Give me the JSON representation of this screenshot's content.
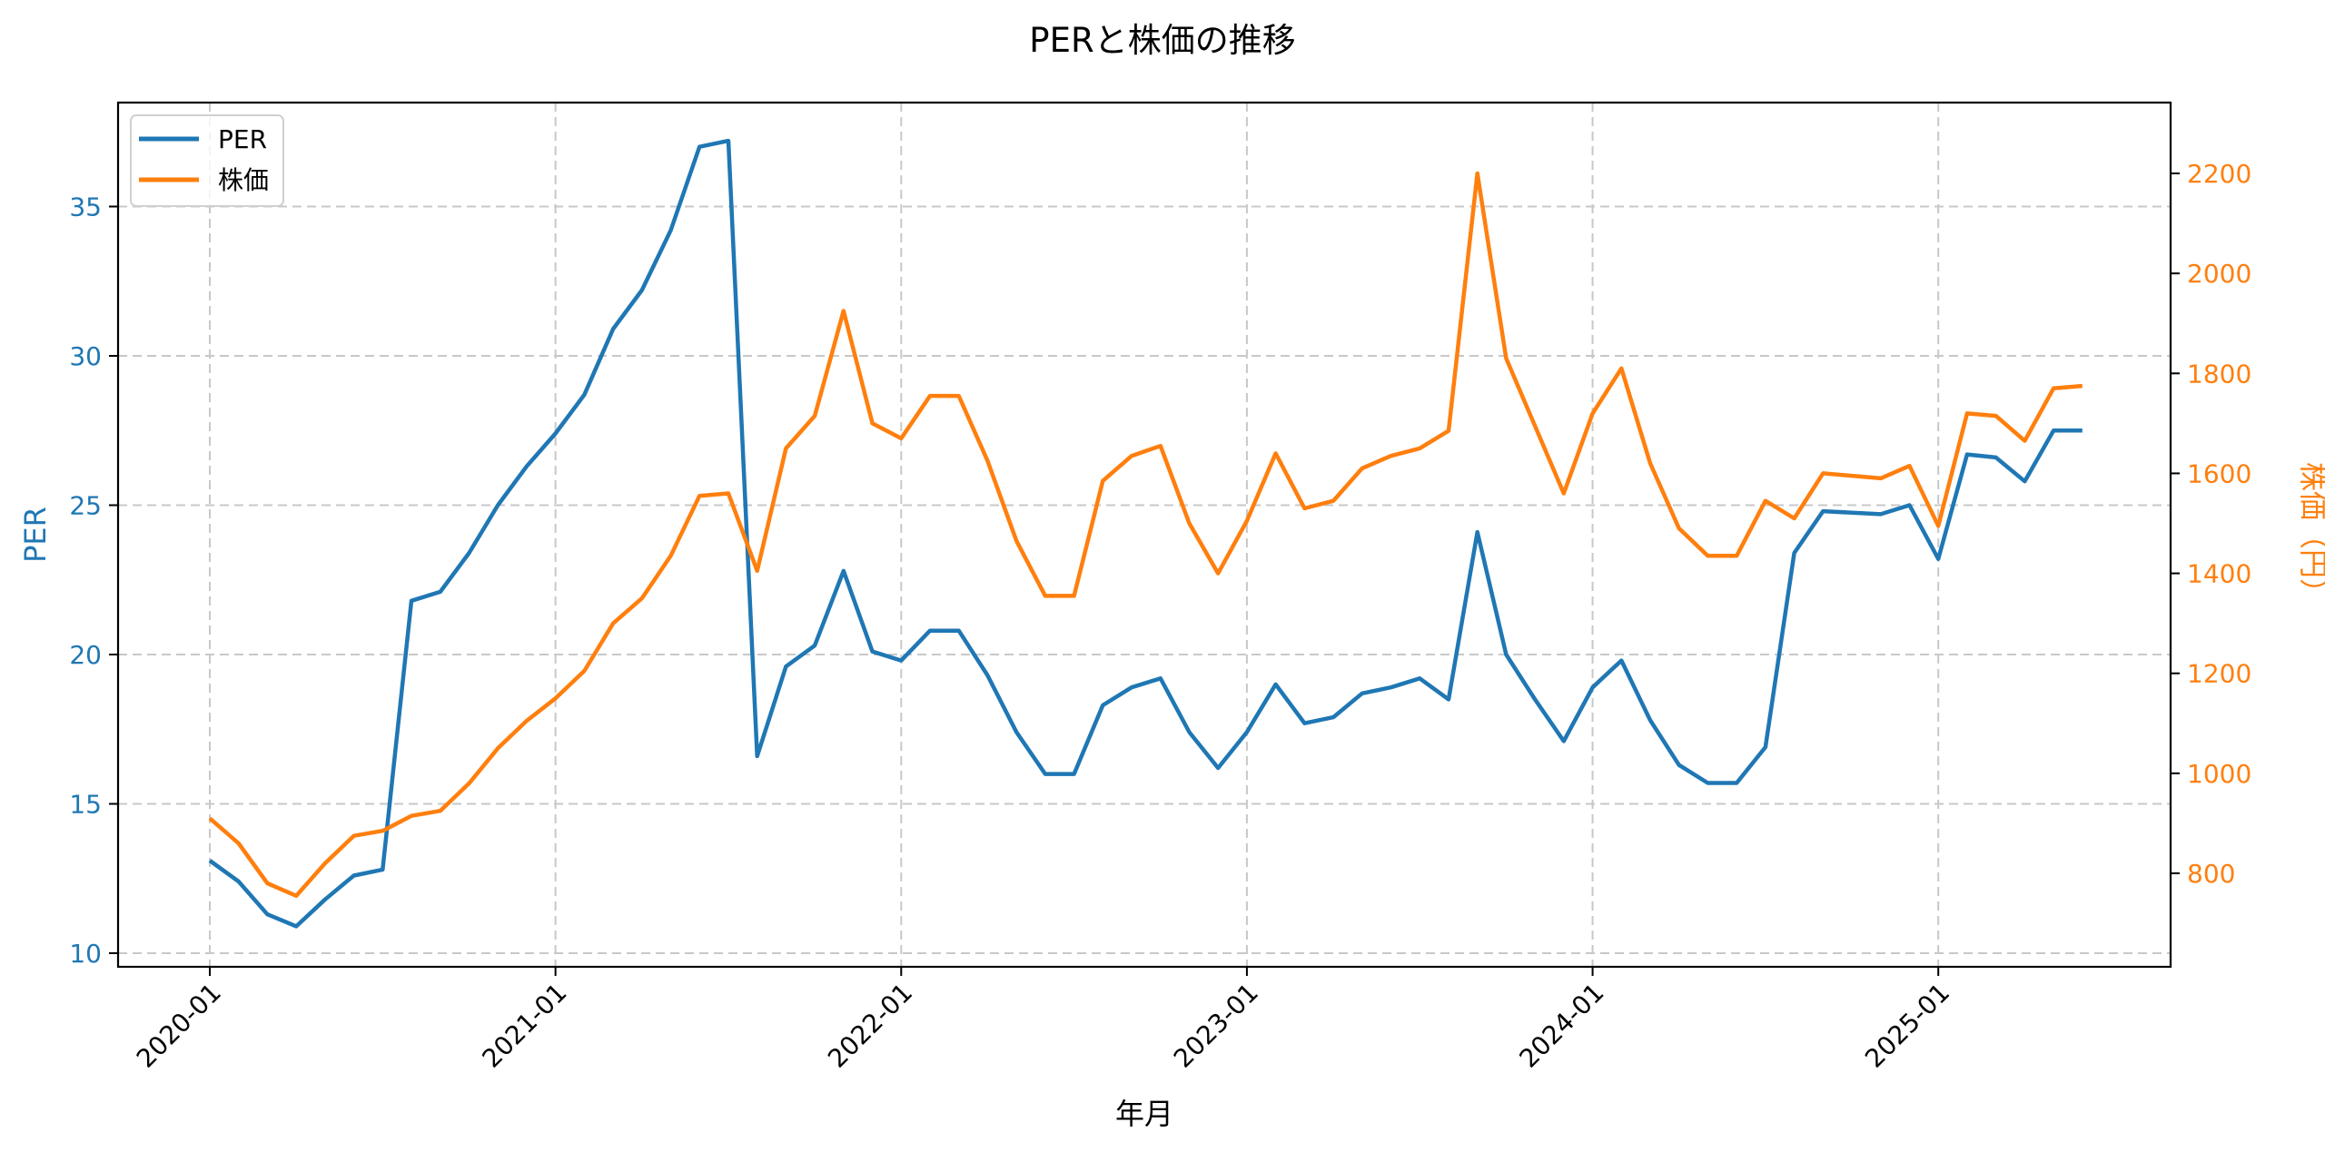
{
  "chart_data": {
    "type": "line",
    "title": "PERと株価の推移",
    "xlabel": "年月",
    "ylabel": "PER",
    "ylabel_right": "株価（円）",
    "x_tick_labels": [
      "2020-01",
      "2021-01",
      "2022-01",
      "2023-01",
      "2024-01",
      "2025-01"
    ],
    "y_ticks_left": [
      10,
      15,
      20,
      25,
      30,
      35
    ],
    "y_ticks_right": [
      800,
      1000,
      1200,
      1400,
      1600,
      1800,
      2000,
      2200
    ],
    "ylim_left": [
      9.6,
      38.5
    ],
    "ylim_right": [
      690,
      2440
    ],
    "grid": true,
    "legend_position": "upper left",
    "legend": [
      "PER",
      "株価"
    ],
    "colors": {
      "PER": "#1f77b4",
      "株価": "#ff7f0e"
    },
    "x": [
      "2020-01",
      "2020-02",
      "2020-03",
      "2020-04",
      "2020-05",
      "2020-06",
      "2020-07",
      "2020-08",
      "2020-09",
      "2020-10",
      "2020-11",
      "2020-12",
      "2021-01",
      "2021-02",
      "2021-03",
      "2021-04",
      "2021-05",
      "2021-06",
      "2021-07",
      "2021-08",
      "2021-09",
      "2021-10",
      "2021-11",
      "2021-12",
      "2022-01",
      "2022-02",
      "2022-03",
      "2022-04",
      "2022-05",
      "2022-06",
      "2022-07",
      "2022-08",
      "2022-09",
      "2022-10",
      "2022-11",
      "2022-12",
      "2023-01",
      "2023-02",
      "2023-03",
      "2023-04",
      "2023-05",
      "2023-06",
      "2023-07",
      "2023-08",
      "2023-09",
      "2023-10",
      "2023-11",
      "2023-12",
      "2024-01",
      "2024-02",
      "2024-03",
      "2024-04",
      "2024-05",
      "2024-06",
      "2024-07",
      "2024-08",
      "2024-09",
      "2024-11",
      "2024-12",
      "2025-01",
      "2025-02",
      "2025-03",
      "2025-04",
      "2025-05",
      "2025-06"
    ],
    "series": [
      {
        "name": "PER",
        "axis": "left",
        "values": [
          13.1,
          12.4,
          11.3,
          10.9,
          11.8,
          12.6,
          12.8,
          21.8,
          22.1,
          23.4,
          25.0,
          26.3,
          27.4,
          28.7,
          30.9,
          32.2,
          34.2,
          37.0,
          37.2,
          16.6,
          19.6,
          20.3,
          22.8,
          20.1,
          19.8,
          20.8,
          20.8,
          19.3,
          17.4,
          16.0,
          16.0,
          18.3,
          18.9,
          19.2,
          17.4,
          16.2,
          17.4,
          19.0,
          17.7,
          17.9,
          18.7,
          18.9,
          19.2,
          18.5,
          24.1,
          20.0,
          18.5,
          17.1,
          18.9,
          19.8,
          17.8,
          16.3,
          15.7,
          15.7,
          16.9,
          23.4,
          24.8,
          24.7,
          25.0,
          23.2,
          26.7,
          26.6,
          25.8,
          27.5,
          27.5
        ]
      },
      {
        "name": "株価",
        "axis": "right",
        "values": [
          910,
          860,
          780,
          755,
          820,
          875,
          885,
          915,
          925,
          980,
          1050,
          1105,
          1150,
          1205,
          1300,
          1350,
          1435,
          1555,
          1560,
          1405,
          1650,
          1715,
          1925,
          1700,
          1670,
          1755,
          1755,
          1625,
          1465,
          1355,
          1355,
          1585,
          1635,
          1655,
          1500,
          1400,
          1505,
          1640,
          1530,
          1545,
          1610,
          1635,
          1650,
          1685,
          2200,
          1830,
          1695,
          1560,
          1720,
          1810,
          1620,
          1490,
          1435,
          1435,
          1545,
          1510,
          1600,
          1590,
          1615,
          1495,
          1720,
          1715,
          1665,
          1770,
          1775
        ]
      }
    ]
  }
}
